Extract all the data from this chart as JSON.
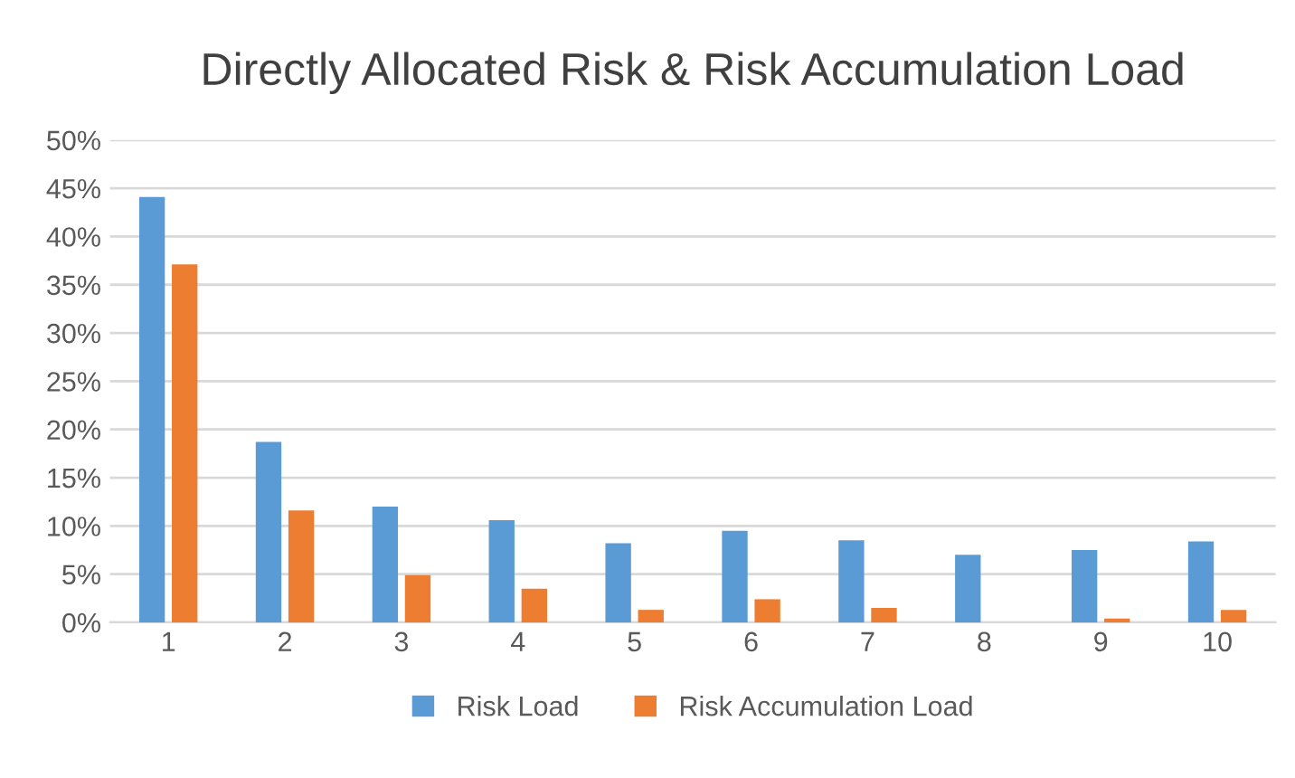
{
  "chart_data": {
    "type": "bar",
    "title": "Directly Allocated Risk & Risk Accumulation Load",
    "categories": [
      "1",
      "2",
      "3",
      "4",
      "5",
      "6",
      "7",
      "8",
      "9",
      "10"
    ],
    "series": [
      {
        "name": "Risk Load",
        "color": "#5b9bd5",
        "values": [
          44.1,
          18.7,
          12.0,
          10.6,
          8.2,
          9.5,
          8.5,
          7.0,
          7.5,
          8.4
        ]
      },
      {
        "name": "Risk Accumulation Load",
        "color": "#ed7d31",
        "values": [
          37.1,
          11.6,
          4.9,
          3.5,
          1.3,
          2.4,
          1.5,
          0,
          0.4,
          1.3
        ]
      }
    ],
    "ylim": [
      0,
      50
    ],
    "yticks": [
      {
        "value": 0,
        "label": "0%"
      },
      {
        "value": 5,
        "label": "5%"
      },
      {
        "value": 10,
        "label": "10%"
      },
      {
        "value": 15,
        "label": "15%"
      },
      {
        "value": 20,
        "label": "20%"
      },
      {
        "value": 25,
        "label": "25%"
      },
      {
        "value": 30,
        "label": "30%"
      },
      {
        "value": 35,
        "label": "35%"
      },
      {
        "value": 40,
        "label": "40%"
      },
      {
        "value": 45,
        "label": "45%"
      },
      {
        "value": 50,
        "label": "50%"
      }
    ],
    "grid": "y",
    "legend": "bottom"
  }
}
